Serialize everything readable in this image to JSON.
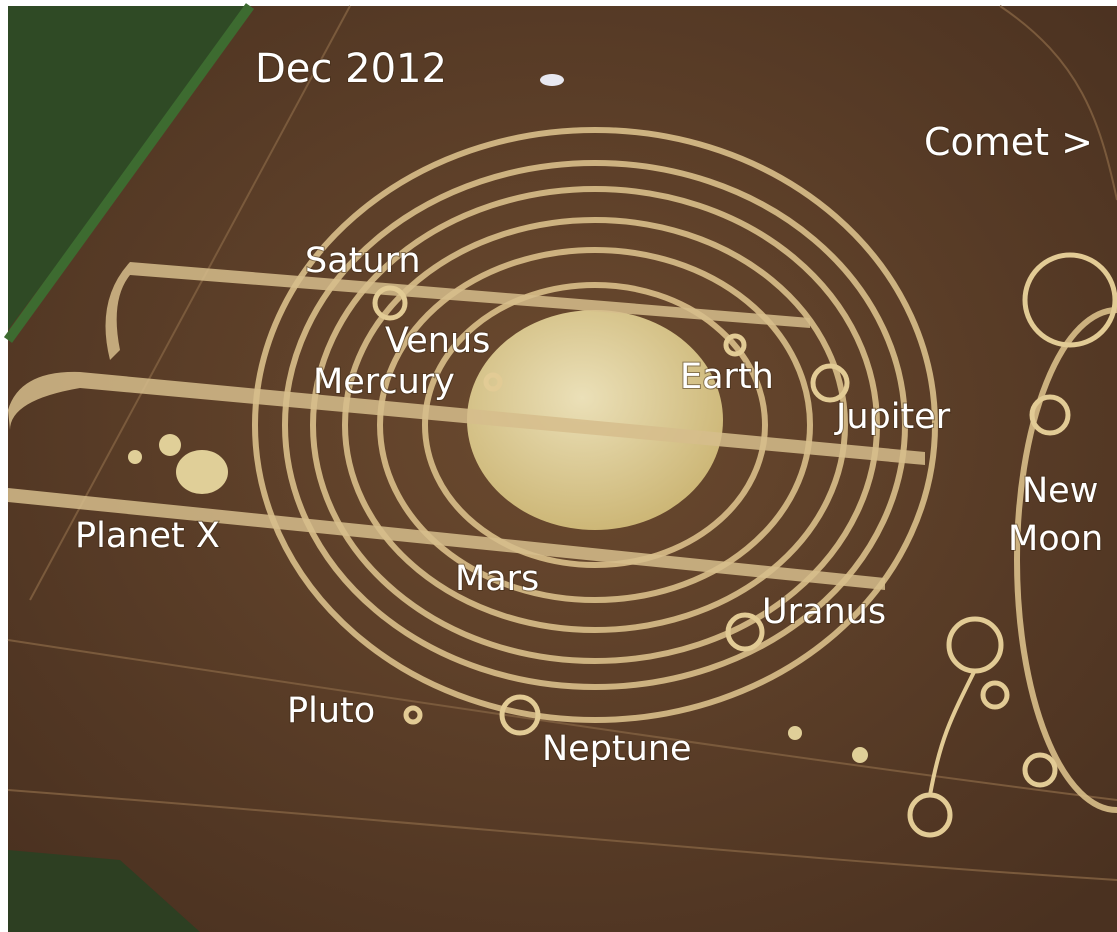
{
  "labels": [
    "Dec 2012",
    "Comet >",
    "Saturn",
    "Venus",
    "Mercury",
    "Earth",
    "Jupiter",
    "New",
    "Moon",
    "Planet X",
    "Mars",
    "Uranus",
    "Pluto",
    "Neptune"
  ]
}
